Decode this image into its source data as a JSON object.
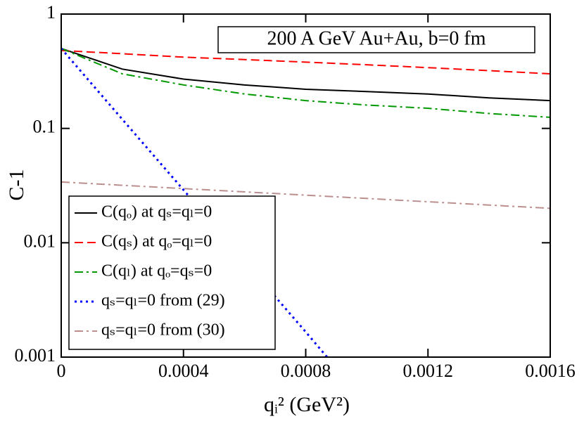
{
  "chart_data": {
    "type": "line",
    "annotation": "200 A GeV Au+Au, b=0 fm",
    "xlabel": "qᵢ² (GeV²)",
    "ylabel": "C-1",
    "xlim": [
      0,
      0.0016
    ],
    "xticks": [
      0,
      0.0004,
      0.0008,
      0.0012,
      0.0016
    ],
    "ylim": [
      0.001,
      1
    ],
    "yticks": [
      0.001,
      0.01,
      0.1,
      1
    ],
    "log_y": true,
    "legend": "lower-left",
    "series": [
      {
        "name": "C(qₒ) at qₛ=qₗ=0",
        "color": "#000000",
        "style": "solid",
        "x": [
          0,
          0.0002,
          0.0004,
          0.0006,
          0.0008,
          0.001,
          0.0012,
          0.0014,
          0.0016
        ],
        "values": [
          0.5,
          0.33,
          0.27,
          0.24,
          0.22,
          0.21,
          0.2,
          0.185,
          0.175
        ]
      },
      {
        "name": "C(qₛ) at qₒ=qₗ=0",
        "color": "#ff0000",
        "style": "dashed",
        "x": [
          0,
          0.0002,
          0.0004,
          0.0006,
          0.0008,
          0.001,
          0.0012,
          0.0014,
          0.0016
        ],
        "values": [
          0.48,
          0.45,
          0.42,
          0.4,
          0.38,
          0.36,
          0.34,
          0.32,
          0.3
        ]
      },
      {
        "name": "C(qₗ) at qₒ=qₛ=0",
        "color": "#009900",
        "style": "dashdot",
        "x": [
          0,
          0.0002,
          0.0004,
          0.0006,
          0.0008,
          0.001,
          0.0012,
          0.0014,
          0.0016
        ],
        "values": [
          0.5,
          0.3,
          0.24,
          0.2,
          0.175,
          0.16,
          0.15,
          0.135,
          0.125
        ]
      },
      {
        "name": "qₛ=qₗ=0 from (29)",
        "color": "#0000ff",
        "style": "dotted",
        "x": [
          0,
          0.0002,
          0.0004,
          0.0006,
          0.0008,
          0.00087
        ],
        "values": [
          0.5,
          0.12,
          0.029,
          0.0069,
          0.00166,
          0.001
        ]
      },
      {
        "name": "qₛ=qₗ=0 from (30)",
        "color": "#bc8f8f",
        "style": "dashdot",
        "x": [
          0,
          0.0016
        ],
        "values": [
          0.034,
          0.02
        ]
      }
    ]
  }
}
